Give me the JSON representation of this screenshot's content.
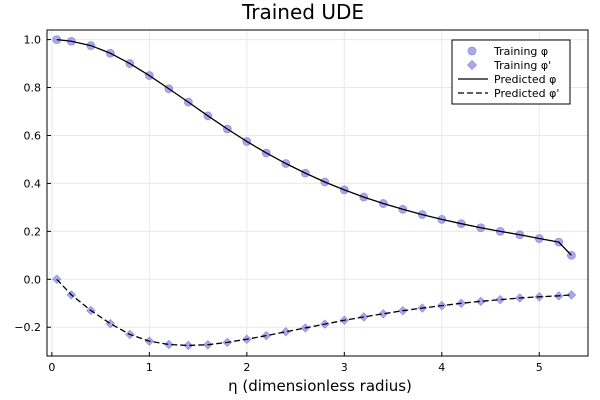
{
  "chart_data": {
    "type": "scatter",
    "title": "Trained UDE",
    "xlabel": "η (dimensionless radius)",
    "ylabel": "",
    "xlim": [
      -0.05,
      5.5
    ],
    "ylim": [
      -0.32,
      1.04
    ],
    "x_ticks": [
      0,
      1,
      2,
      3,
      4,
      5
    ],
    "x_tick_labels": [
      "0",
      "1",
      "2",
      "3",
      "4",
      "5"
    ],
    "y_ticks": [
      -0.2,
      0.0,
      0.2,
      0.4,
      0.6,
      0.8,
      1.0
    ],
    "y_tick_labels": [
      "−0.2",
      "0.0",
      "0.2",
      "0.4",
      "0.6",
      "0.8",
      "1.0"
    ],
    "grid": true,
    "legend_position": "top-right",
    "colors": {
      "training": "#8c8ce6",
      "training_edge": "#6a6ad4",
      "predicted": "#000000"
    },
    "x": [
      0.05,
      0.2,
      0.4,
      0.6,
      0.8,
      1.0,
      1.2,
      1.4,
      1.6,
      1.8,
      2.0,
      2.2,
      2.4,
      2.6,
      2.8,
      3.0,
      3.2,
      3.4,
      3.6,
      3.8,
      4.0,
      4.2,
      4.4,
      4.6,
      4.8,
      5.0,
      5.2,
      5.33
    ],
    "series": [
      {
        "name": "Training φ",
        "kind": "scatter",
        "marker": "circle",
        "values": [
          1.0,
          0.993,
          0.975,
          0.943,
          0.9,
          0.85,
          0.795,
          0.739,
          0.682,
          0.627,
          0.575,
          0.527,
          0.483,
          0.443,
          0.406,
          0.373,
          0.343,
          0.316,
          0.292,
          0.27,
          0.25,
          0.232,
          0.215,
          0.2,
          0.186,
          0.17,
          0.155,
          0.1
        ]
      },
      {
        "name": "Training φ'",
        "kind": "scatter",
        "marker": "diamond",
        "values": [
          0.0,
          -0.065,
          -0.13,
          -0.185,
          -0.23,
          -0.258,
          -0.272,
          -0.276,
          -0.273,
          -0.263,
          -0.25,
          -0.235,
          -0.219,
          -0.203,
          -0.187,
          -0.171,
          -0.157,
          -0.144,
          -0.131,
          -0.12,
          -0.11,
          -0.1,
          -0.092,
          -0.085,
          -0.078,
          -0.073,
          -0.069,
          -0.065
        ]
      },
      {
        "name": "Predicted φ",
        "kind": "line",
        "dash": "solid",
        "values": [
          1.0,
          0.993,
          0.975,
          0.943,
          0.9,
          0.85,
          0.795,
          0.739,
          0.682,
          0.627,
          0.575,
          0.527,
          0.483,
          0.443,
          0.406,
          0.373,
          0.343,
          0.316,
          0.292,
          0.27,
          0.25,
          0.232,
          0.215,
          0.2,
          0.186,
          0.17,
          0.155,
          0.1
        ]
      },
      {
        "name": "Predicted φ'",
        "kind": "line",
        "dash": "dashed",
        "values": [
          0.0,
          -0.065,
          -0.13,
          -0.185,
          -0.23,
          -0.258,
          -0.272,
          -0.276,
          -0.273,
          -0.263,
          -0.25,
          -0.235,
          -0.219,
          -0.203,
          -0.187,
          -0.171,
          -0.157,
          -0.144,
          -0.131,
          -0.12,
          -0.11,
          -0.1,
          -0.092,
          -0.085,
          -0.078,
          -0.073,
          -0.069,
          -0.065
        ]
      }
    ]
  }
}
